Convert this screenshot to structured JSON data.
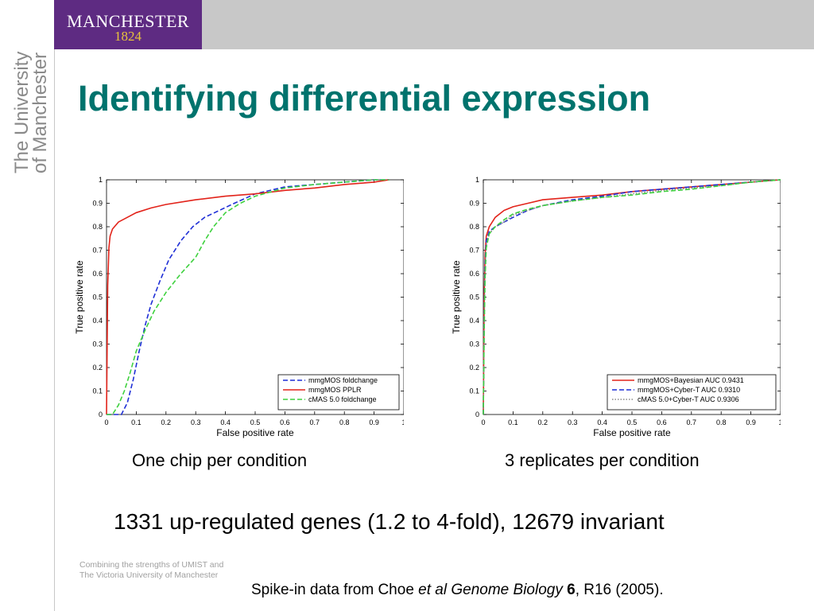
{
  "header": {
    "logo": {
      "name": "MANCHESTER",
      "year": "1824"
    },
    "sidebar_text": [
      "The University",
      "of Manchester"
    ]
  },
  "slide": {
    "title": "Identifying differential expression",
    "caption_left": "One chip per condition",
    "caption_right": "3 replicates per condition",
    "stat": "1331 up-regulated genes (1.2 to 4-fold), 12679 invariant",
    "footer_note": [
      "Combining the strengths of UMIST and",
      "The Victoria University of Manchester"
    ],
    "citation": {
      "prefix": "Spike-in data from Choe ",
      "italic": "et al Genome Biology",
      "bold": "6",
      "suffix": ", R16 (2005)."
    }
  },
  "colors": {
    "red": "#e2231a",
    "blue": "#1f2fd6",
    "green": "#3fd13f",
    "grey": "#888888"
  },
  "chart_data": [
    {
      "type": "line",
      "xlabel": "False positive rate",
      "ylabel": "True positive rate",
      "xlim": [
        0,
        1
      ],
      "ylim": [
        0,
        1
      ],
      "xticks": [
        "0",
        "0.1",
        "0.2",
        "0.3",
        "0.4",
        "0.5",
        "0.6",
        "0.7",
        "0.8",
        "0.9",
        "1"
      ],
      "yticks": [
        "0",
        "0.1",
        "0.2",
        "0.3",
        "0.4",
        "0.5",
        "0.6",
        "0.7",
        "0.8",
        "0.9",
        "1"
      ],
      "grid": false,
      "legend_position": "bottom-right",
      "series": [
        {
          "name": "mmgMOS foldchange",
          "color": "#1f2fd6",
          "dash": "6,3",
          "x": [
            0,
            0.05,
            0.07,
            0.09,
            0.11,
            0.13,
            0.15,
            0.18,
            0.21,
            0.25,
            0.29,
            0.33,
            0.38,
            0.43,
            0.5,
            0.6,
            0.7,
            0.8,
            0.9,
            0.95
          ],
          "y": [
            0,
            0,
            0.05,
            0.15,
            0.27,
            0.38,
            0.47,
            0.57,
            0.66,
            0.74,
            0.8,
            0.84,
            0.87,
            0.9,
            0.94,
            0.97,
            0.98,
            0.99,
            1,
            1
          ]
        },
        {
          "name": "mmgMOS PPLR",
          "color": "#e2231a",
          "dash": "",
          "x": [
            0,
            0.004,
            0.008,
            0.012,
            0.02,
            0.04,
            0.07,
            0.1,
            0.15,
            0.2,
            0.3,
            0.4,
            0.5,
            0.6,
            0.7,
            0.8,
            0.9,
            0.95
          ],
          "y": [
            0,
            0.55,
            0.71,
            0.76,
            0.79,
            0.82,
            0.84,
            0.86,
            0.88,
            0.895,
            0.915,
            0.93,
            0.94,
            0.955,
            0.965,
            0.98,
            0.99,
            1
          ]
        },
        {
          "name": "cMAS 5.0 foldchange",
          "color": "#3fd13f",
          "dash": "6,3",
          "x": [
            0,
            0.02,
            0.04,
            0.06,
            0.08,
            0.1,
            0.13,
            0.16,
            0.2,
            0.25,
            0.3,
            0.33,
            0.36,
            0.4,
            0.45,
            0.5,
            0.6,
            0.7,
            0.8,
            0.9,
            0.95
          ],
          "y": [
            0,
            0,
            0.04,
            0.1,
            0.18,
            0.27,
            0.36,
            0.44,
            0.52,
            0.6,
            0.67,
            0.74,
            0.8,
            0.86,
            0.9,
            0.93,
            0.965,
            0.98,
            0.99,
            1,
            1
          ]
        }
      ]
    },
    {
      "type": "line",
      "xlabel": "False positive rate",
      "ylabel": "True positive rate",
      "xlim": [
        0,
        1
      ],
      "ylim": [
        0,
        1
      ],
      "xticks": [
        "0",
        "0.1",
        "0.2",
        "0.3",
        "0.4",
        "0.5",
        "0.6",
        "0.7",
        "0.8",
        "0.9",
        "1"
      ],
      "yticks": [
        "0",
        "0.1",
        "0.2",
        "0.3",
        "0.4",
        "0.5",
        "0.6",
        "0.7",
        "0.8",
        "0.9",
        "1"
      ],
      "grid": false,
      "legend_position": "bottom-right",
      "series": [
        {
          "name": "mmgMOS+Bayesian AUC 0.9431",
          "color": "#e2231a",
          "dash": "",
          "x": [
            0,
            0.003,
            0.006,
            0.01,
            0.02,
            0.04,
            0.07,
            0.1,
            0.15,
            0.2,
            0.3,
            0.4,
            0.5,
            0.6,
            0.7,
            0.8,
            0.9,
            1
          ],
          "y": [
            0,
            0.5,
            0.68,
            0.76,
            0.8,
            0.84,
            0.87,
            0.885,
            0.9,
            0.915,
            0.925,
            0.935,
            0.95,
            0.96,
            0.97,
            0.98,
            0.99,
            1
          ]
        },
        {
          "name": "mmgMOS+Cyber-T AUC 0.9310",
          "color": "#1f2fd6",
          "dash": "6,3",
          "x": [
            0,
            0.003,
            0.006,
            0.01,
            0.02,
            0.04,
            0.07,
            0.1,
            0.15,
            0.2,
            0.3,
            0.4,
            0.5,
            0.6,
            0.7,
            0.8,
            0.9,
            1
          ],
          "y": [
            0,
            0.42,
            0.64,
            0.74,
            0.78,
            0.8,
            0.82,
            0.84,
            0.87,
            0.89,
            0.915,
            0.93,
            0.95,
            0.96,
            0.97,
            0.98,
            0.99,
            1
          ]
        },
        {
          "name": "cMAS 5.0+Cyber-T AUC 0.9306",
          "color": "#888888",
          "dash": "1.5,2",
          "x": [
            0,
            0.003,
            0.006,
            0.01,
            0.02,
            0.04,
            0.07,
            0.1,
            0.15,
            0.2,
            0.3,
            0.4,
            0.5,
            0.6,
            0.7,
            0.8,
            0.9,
            1
          ],
          "y": [
            0,
            0.38,
            0.6,
            0.72,
            0.77,
            0.8,
            0.82,
            0.85,
            0.87,
            0.89,
            0.91,
            0.925,
            0.94,
            0.955,
            0.965,
            0.975,
            0.99,
            1
          ]
        },
        {
          "name": "",
          "color": "#3fd13f",
          "dash": "6,3",
          "x": [
            0,
            0.003,
            0.006,
            0.01,
            0.02,
            0.04,
            0.07,
            0.1,
            0.15,
            0.2,
            0.3,
            0.4,
            0.5,
            0.6,
            0.7,
            0.8,
            0.9,
            1
          ],
          "y": [
            0,
            0.35,
            0.58,
            0.71,
            0.77,
            0.8,
            0.83,
            0.855,
            0.875,
            0.89,
            0.91,
            0.925,
            0.935,
            0.95,
            0.96,
            0.975,
            0.99,
            1
          ]
        }
      ]
    }
  ]
}
